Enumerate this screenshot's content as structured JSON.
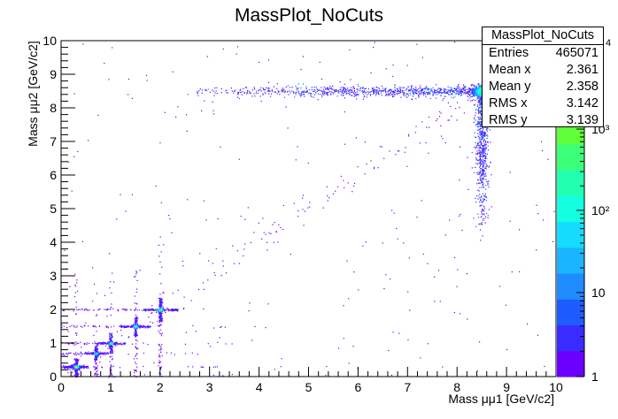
{
  "title": "MassPlot_NoCuts",
  "stats": {
    "title": "MassPlot_NoCuts",
    "rows": [
      {
        "label": "Entries",
        "value": "465071"
      },
      {
        "label": "Mean x",
        "value": "2.361"
      },
      {
        "label": "Mean y",
        "value": "2.358"
      },
      {
        "label": "RMS x",
        "value": "3.142"
      },
      {
        "label": "RMS y",
        "value": "3.139"
      }
    ]
  },
  "chart_data": {
    "type": "heatmap",
    "title": "MassPlot_NoCuts",
    "xlabel": "Mass μμ1 [GeV/c2]",
    "ylabel": "Mass μμ2 [GeV/c2]",
    "xlim": [
      0,
      10
    ],
    "ylim": [
      0,
      10
    ],
    "x_ticks": [
      "0",
      "1",
      "2",
      "3",
      "4",
      "5",
      "6",
      "7",
      "8",
      "9",
      "10"
    ],
    "y_ticks": [
      "0",
      "1",
      "2",
      "3",
      "4",
      "5",
      "6",
      "7",
      "8",
      "9",
      "10"
    ],
    "z_scale": "log",
    "z_ticks": [
      "1",
      "10",
      "10²",
      "10³"
    ],
    "z_top_fragment": "4",
    "grid": false,
    "clusters": [
      {
        "x": 0.3,
        "y": 0.3,
        "intensity": "high"
      },
      {
        "x": 0.7,
        "y": 0.7,
        "intensity": "medium"
      },
      {
        "x": 1.0,
        "y": 1.0,
        "intensity": "medium"
      },
      {
        "x": 1.5,
        "y": 1.5,
        "intensity": "medium"
      },
      {
        "x": 2.0,
        "y": 2.0,
        "intensity": "medium"
      },
      {
        "x": 8.5,
        "y": 8.5,
        "intensity": "very high"
      }
    ],
    "bands": [
      {
        "orientation": "horizontal",
        "y": 8.5,
        "x_range": [
          2.5,
          8.5
        ]
      },
      {
        "orientation": "vertical",
        "x": 8.5,
        "y_range": [
          4.0,
          8.5
        ]
      }
    ],
    "palette": [
      "#6a00ff",
      "#3a2cff",
      "#1f5cff",
      "#1c8cff",
      "#1ab4ff",
      "#15dcff",
      "#14ffe0",
      "#22ffb0",
      "#3cff7a",
      "#60ff3a",
      "#a0ff1e",
      "#d8ff1a",
      "#ffff20"
    ]
  }
}
